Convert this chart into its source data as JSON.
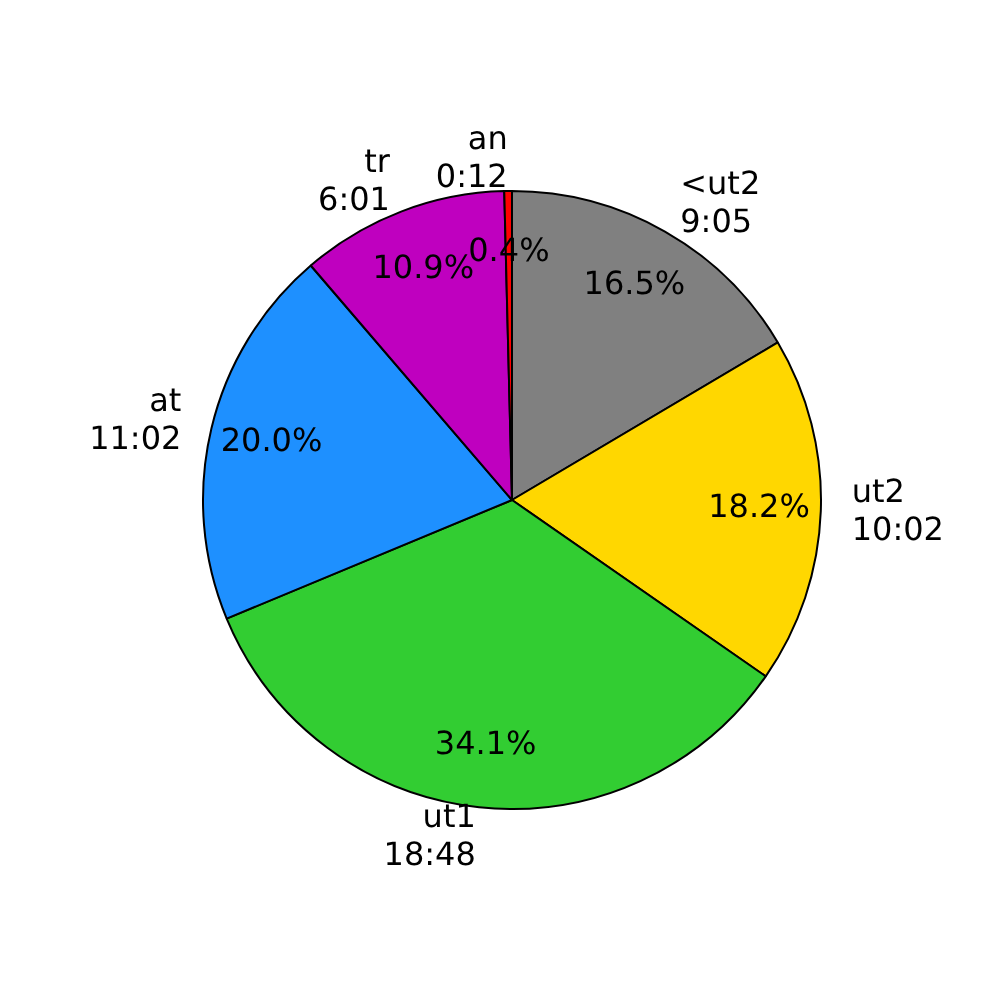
{
  "chart_data": {
    "type": "pie",
    "categories": [
      "<ut2\n9:05",
      "ut2\n10:02",
      "ut1\n18:48",
      "at\n11:02",
      "tr\n6:01",
      "an\n0:12"
    ],
    "values": [
      16.5,
      18.2,
      34.1,
      20.0,
      10.9,
      0.4
    ],
    "value_labels": [
      "16.5%",
      "18.2%",
      "34.1%",
      "20.0%",
      "10.9%",
      "0.4%"
    ],
    "colors": [
      "#808080",
      "#ffd700",
      "#32cd32",
      "#1e90ff",
      "#bf00bf",
      "#ff0000"
    ],
    "legend": false
  }
}
